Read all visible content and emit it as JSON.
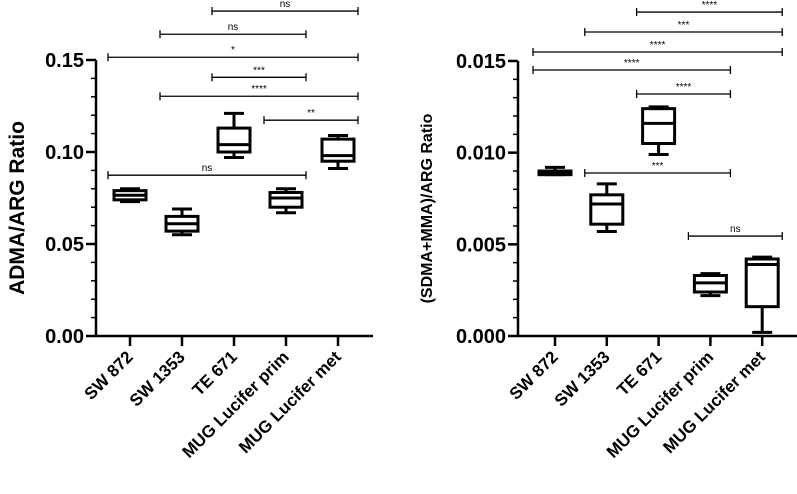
{
  "chart_data": [
    {
      "type": "boxplot",
      "ylabel": "ADMA/ARG Ratio",
      "ylim": [
        0,
        0.15
      ],
      "yticks": [
        "0.00",
        "0.05",
        "0.10",
        "0.15"
      ],
      "ytick_values": [
        0,
        0.05,
        0.1,
        0.15
      ],
      "minor_step": 0.01,
      "categories": [
        "SW 872",
        "SW 1353",
        "TE 671",
        "MUG Lucifer prim",
        "MUG Lucifer met"
      ],
      "boxes": [
        {
          "min": 0.073,
          "q1": 0.074,
          "median": 0.0765,
          "q3": 0.079,
          "max": 0.08
        },
        {
          "min": 0.055,
          "q1": 0.057,
          "median": 0.061,
          "q3": 0.065,
          "max": 0.069
        },
        {
          "min": 0.097,
          "q1": 0.1,
          "median": 0.104,
          "q3": 0.113,
          "max": 0.121
        },
        {
          "min": 0.067,
          "q1": 0.07,
          "median": 0.075,
          "q3": 0.078,
          "max": 0.08
        },
        {
          "min": 0.091,
          "q1": 0.095,
          "median": 0.098,
          "q3": 0.107,
          "max": 0.109
        }
      ],
      "comparisons": [
        {
          "from": 2,
          "to": 4,
          "label": "ns",
          "y": 0.1766
        },
        {
          "from": 1,
          "to": 3,
          "label": "ns",
          "y": 0.164
        },
        {
          "from": 0,
          "to": 4,
          "label": "*",
          "y": 0.1515
        },
        {
          "from": 2,
          "to": 3,
          "label": "***",
          "y": 0.1406
        },
        {
          "from": 1,
          "to": 4,
          "label": "****",
          "y": 0.1303
        },
        {
          "from": 3,
          "to": 4,
          "label": "**",
          "y": 0.1173
        },
        {
          "from": 0,
          "to": 3,
          "label": "ns",
          "y": 0.0874
        }
      ]
    },
    {
      "type": "boxplot",
      "ylabel": "(SDMA+MMA)/ARG Ratio",
      "ylim": [
        0,
        0.015
      ],
      "yticks": [
        "0.000",
        "0.005",
        "0.010",
        "0.015"
      ],
      "ytick_values": [
        0,
        0.005,
        0.01,
        0.015
      ],
      "minor_step": 0.001,
      "categories": [
        "SW 872",
        "SW 1353",
        "TE 671",
        "MUG Lucifer prim",
        "MUG Lucifer met"
      ],
      "boxes": [
        {
          "min": 0.0088,
          "q1": 0.0088,
          "median": 0.0089,
          "q3": 0.009,
          "max": 0.0092
        },
        {
          "min": 0.0057,
          "q1": 0.0061,
          "median": 0.0072,
          "q3": 0.0077,
          "max": 0.0083
        },
        {
          "min": 0.0099,
          "q1": 0.0105,
          "median": 0.0116,
          "q3": 0.0124,
          "max": 0.0125
        },
        {
          "min": 0.0022,
          "q1": 0.0024,
          "median": 0.0029,
          "q3": 0.0033,
          "max": 0.0034
        },
        {
          "min": 0.0002,
          "q1": 0.0016,
          "median": 0.0039,
          "q3": 0.0042,
          "max": 0.0043
        }
      ],
      "comparisons": [
        {
          "from": 2,
          "to": 4,
          "label": "****",
          "y": 0.01767
        },
        {
          "from": 1,
          "to": 4,
          "label": "***",
          "y": 0.01658
        },
        {
          "from": 0,
          "to": 4,
          "label": "****",
          "y": 0.01549
        },
        {
          "from": 0,
          "to": 3,
          "label": "****",
          "y": 0.01451
        },
        {
          "from": 2,
          "to": 3,
          "label": "****",
          "y": 0.0132
        },
        {
          "from": 1,
          "to": 3,
          "label": "***",
          "y": 0.00889
        },
        {
          "from": 3,
          "to": 4,
          "label": "ns",
          "y": 0.00545
        }
      ]
    }
  ]
}
